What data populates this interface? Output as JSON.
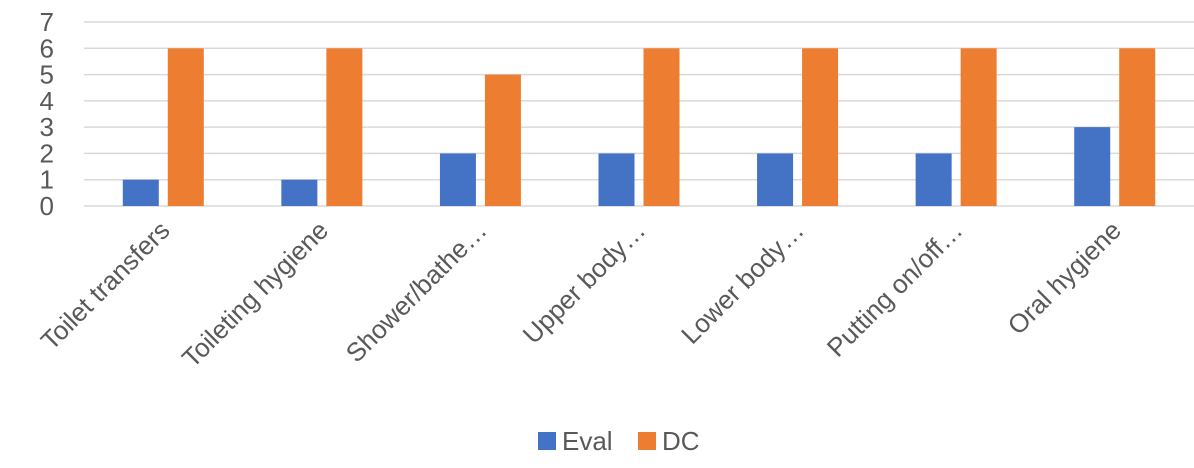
{
  "chart_data": {
    "type": "bar",
    "title": "",
    "xlabel": "",
    "ylabel": "",
    "categories": [
      "Toilet transfers",
      "Toileting hygiene",
      "Shower/bathe…",
      "Upper body…",
      "Lower body…",
      "Putting on/off…",
      "Oral hygiene"
    ],
    "series": [
      {
        "name": "Eval",
        "color": "#4472C4",
        "values": [
          1,
          1,
          2,
          2,
          2,
          2,
          3
        ]
      },
      {
        "name": "DC",
        "color": "#ED7D31",
        "values": [
          6,
          6,
          5,
          6,
          6,
          6,
          6
        ]
      }
    ],
    "ylim": [
      0,
      7
    ],
    "yticks": [
      0,
      1,
      2,
      3,
      4,
      5,
      6,
      7
    ],
    "grid": true,
    "gridline_color": "#D9D9D9",
    "legend_position": "bottom"
  }
}
